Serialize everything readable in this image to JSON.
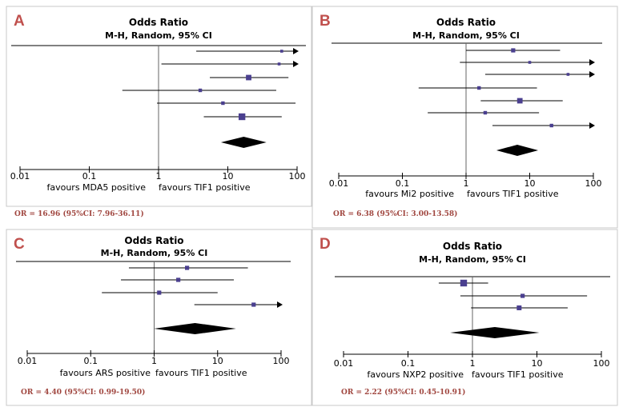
{
  "chart_data": [
    {
      "type": "forest",
      "panel_label": "A",
      "title": "Odds Ratio",
      "subtitle": "M-H, Random, 95% CI",
      "x_scale": "log",
      "xlim": [
        0.01,
        100
      ],
      "ticks": [
        "0.01",
        "0.1",
        "1",
        "10",
        "100"
      ],
      "favours_left": "favours MDA5 positive",
      "favours_right": "favours TIF1 positive",
      "studies": [
        {
          "or": 60,
          "lo": 3.5,
          "hi": 100,
          "arrow": true,
          "weight": 1
        },
        {
          "or": 55,
          "lo": 1.1,
          "hi": 100,
          "arrow": true,
          "weight": 1
        },
        {
          "or": 20,
          "lo": 5.5,
          "hi": 75,
          "arrow": false,
          "weight": 3
        },
        {
          "or": 4.0,
          "lo": 0.3,
          "hi": 50,
          "arrow": false,
          "weight": 1.5
        },
        {
          "or": 8.5,
          "lo": 0.95,
          "hi": 95,
          "arrow": false,
          "weight": 1.5
        },
        {
          "or": 16,
          "lo": 4.5,
          "hi": 60,
          "arrow": false,
          "weight": 4
        }
      ],
      "pooled": {
        "or": 16.96,
        "lo": 7.96,
        "hi": 36.11
      },
      "summary_text": "OR = 16.96 (95%CI: 7.96-36.11)"
    },
    {
      "type": "forest",
      "panel_label": "B",
      "title": "Odds Ratio",
      "subtitle": "M-H, Random, 95% CI",
      "x_scale": "log",
      "xlim": [
        0.01,
        100
      ],
      "ticks": [
        "0.01",
        "0.1",
        "1",
        "10",
        "100"
      ],
      "favours_left": "favours Mi2 positive",
      "favours_right": "favours TIF1 positive",
      "studies": [
        {
          "or": 5.5,
          "lo": 1.0,
          "hi": 30,
          "arrow": false,
          "weight": 2
        },
        {
          "or": 10,
          "lo": 0.8,
          "hi": 100,
          "arrow": true,
          "weight": 1
        },
        {
          "or": 40,
          "lo": 2.0,
          "hi": 100,
          "arrow": true,
          "weight": 1
        },
        {
          "or": 1.6,
          "lo": 0.18,
          "hi": 13,
          "arrow": false,
          "weight": 1.5
        },
        {
          "or": 7.0,
          "lo": 1.7,
          "hi": 33,
          "arrow": false,
          "weight": 3
        },
        {
          "or": 2.0,
          "lo": 0.25,
          "hi": 14,
          "arrow": false,
          "weight": 1.5
        },
        {
          "or": 22,
          "lo": 2.6,
          "hi": 100,
          "arrow": true,
          "weight": 1.5
        }
      ],
      "pooled": {
        "or": 6.38,
        "lo": 3.0,
        "hi": 13.58
      },
      "summary_text": "OR = 6.38 (95%CI: 3.00-13.58)"
    },
    {
      "type": "forest",
      "panel_label": "C",
      "title": "Odds Ratio",
      "subtitle": "M-H, Random, 95% CI",
      "x_scale": "log",
      "xlim": [
        0.01,
        100
      ],
      "ticks": [
        "0.01",
        "0.1",
        "1",
        "10",
        "100"
      ],
      "favours_left": "favours ARS positive",
      "favours_right": "favours TIF1 positive",
      "studies": [
        {
          "or": 3.3,
          "lo": 0.4,
          "hi": 30,
          "arrow": false,
          "weight": 2
        },
        {
          "or": 2.4,
          "lo": 0.3,
          "hi": 18,
          "arrow": false,
          "weight": 2
        },
        {
          "or": 1.2,
          "lo": 0.15,
          "hi": 10,
          "arrow": false,
          "weight": 2
        },
        {
          "or": 37,
          "lo": 4.3,
          "hi": 100,
          "arrow": true,
          "weight": 2
        }
      ],
      "pooled": {
        "or": 4.4,
        "lo": 0.99,
        "hi": 19.5
      },
      "summary_text": "OR = 4.40  (95%CI: 0.99-19.50)"
    },
    {
      "type": "forest",
      "panel_label": "D",
      "title": "Odds Ratio",
      "subtitle": "M-H, Random, 95% CI",
      "x_scale": "log",
      "xlim": [
        0.01,
        100
      ],
      "ticks": [
        "0.01",
        "0.1",
        "1",
        "10",
        "100"
      ],
      "favours_left": "favours NXP2 positive",
      "favours_right": "favours TIF1 positive",
      "studies": [
        {
          "or": 0.73,
          "lo": 0.3,
          "hi": 1.75,
          "arrow": false,
          "weight": 4
        },
        {
          "or": 6.0,
          "lo": 0.65,
          "hi": 60,
          "arrow": false,
          "weight": 2
        },
        {
          "or": 5.3,
          "lo": 0.95,
          "hi": 30,
          "arrow": false,
          "weight": 2.5
        }
      ],
      "pooled": {
        "or": 2.22,
        "lo": 0.45,
        "hi": 10.91
      },
      "summary_text": "OR = 2.22  (95%CI: 0.45-10.91)"
    }
  ],
  "colors": {
    "point": "#4a3f8f",
    "diamond": "#000000",
    "label": "#c0504d",
    "summary": "#a0463f"
  }
}
